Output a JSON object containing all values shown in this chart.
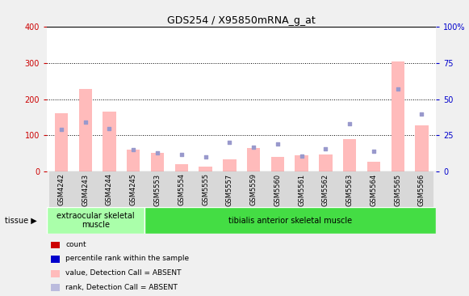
{
  "title": "GDS254 / X95850mRNA_g_at",
  "samples": [
    "GSM4242",
    "GSM4243",
    "GSM4244",
    "GSM4245",
    "GSM5553",
    "GSM5554",
    "GSM5555",
    "GSM5557",
    "GSM5559",
    "GSM5560",
    "GSM5561",
    "GSM5562",
    "GSM5563",
    "GSM5564",
    "GSM5565",
    "GSM5566"
  ],
  "pink_bar_values": [
    162,
    229,
    165,
    60,
    52,
    20,
    15,
    35,
    65,
    40,
    45,
    47,
    90,
    27,
    305,
    127
  ],
  "blue_square_values_pct": [
    29,
    34,
    29.5,
    15,
    13,
    12,
    10,
    20,
    17,
    19,
    11,
    16,
    33,
    14,
    57,
    40
  ],
  "tissue_groups": [
    {
      "label": "extraocular skeletal\nmuscle",
      "start": 0,
      "end": 4,
      "color": "#aaffaa"
    },
    {
      "label": "tibialis anterior skeletal muscle",
      "start": 4,
      "end": 16,
      "color": "#44dd44"
    }
  ],
  "ylim_left": [
    0,
    400
  ],
  "ylim_right": [
    0,
    100
  ],
  "yticks_left": [
    0,
    100,
    200,
    300,
    400
  ],
  "yticks_right": [
    0,
    25,
    50,
    75,
    100
  ],
  "yticklabels_right": [
    "0",
    "25",
    "50",
    "75",
    "100%"
  ],
  "left_tick_color": "#cc0000",
  "right_tick_color": "#0000cc",
  "grid_values": [
    100,
    200,
    300
  ],
  "bg_color": "#f0f0f0",
  "plot_bg_color": "#ffffff",
  "bar_width": 0.55,
  "pink_color": "#ffbbbb",
  "blue_color": "#9999cc",
  "colors_leg": [
    "#cc0000",
    "#0000cc",
    "#ffbbbb",
    "#bbbbdd"
  ],
  "labels_leg": [
    "count",
    "percentile rank within the sample",
    "value, Detection Call = ABSENT",
    "rank, Detection Call = ABSENT"
  ]
}
